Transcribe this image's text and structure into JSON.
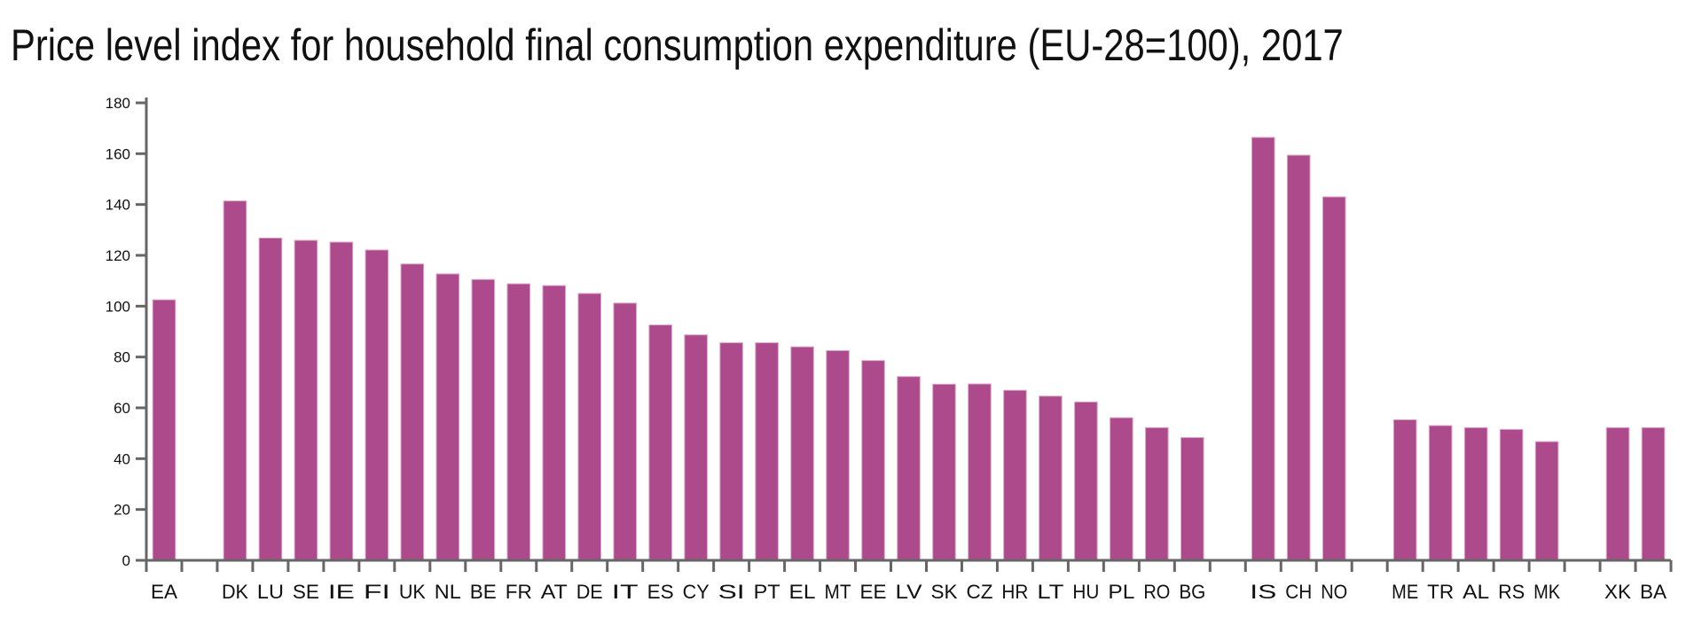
{
  "chart_data": {
    "type": "bar",
    "title": "Price level index for household final consumption expenditure (EU-28=100), 2017",
    "xlabel": "",
    "ylabel": "",
    "ylim": [
      0,
      180
    ],
    "yticks": [
      0,
      20,
      40,
      60,
      80,
      100,
      120,
      140,
      160,
      180
    ],
    "grid": false,
    "legend": "none",
    "bar_color": "#AD4A8C",
    "categories": [
      "EA",
      "",
      "DK",
      "LU",
      "SE",
      "IE",
      "FI",
      "UK",
      "NL",
      "BE",
      "FR",
      "AT",
      "DE",
      "IT",
      "ES",
      "CY",
      "SI",
      "PT",
      "EL",
      "MT",
      "EE",
      "LV",
      "SK",
      "CZ",
      "HR",
      "LT",
      "HU",
      "PL",
      "RO",
      "BG",
      "",
      "IS",
      "CH",
      "NO",
      "",
      "ME",
      "TR",
      "AL",
      "RS",
      "MK",
      "",
      "XK",
      "BA"
    ],
    "values": [
      102.5,
      null,
      141.4,
      126.8,
      125.9,
      125.2,
      122.1,
      116.6,
      112.7,
      110.5,
      108.8,
      108.1,
      105.0,
      101.2,
      92.6,
      88.7,
      85.6,
      85.6,
      84.0,
      82.5,
      78.6,
      72.3,
      69.3,
      69.4,
      66.9,
      64.6,
      62.3,
      56.1,
      52.2,
      48.3,
      null,
      166.4,
      159.4,
      143.0,
      null,
      55.3,
      53.0,
      52.2,
      51.5,
      46.7,
      null,
      52.2,
      52.2
    ]
  }
}
